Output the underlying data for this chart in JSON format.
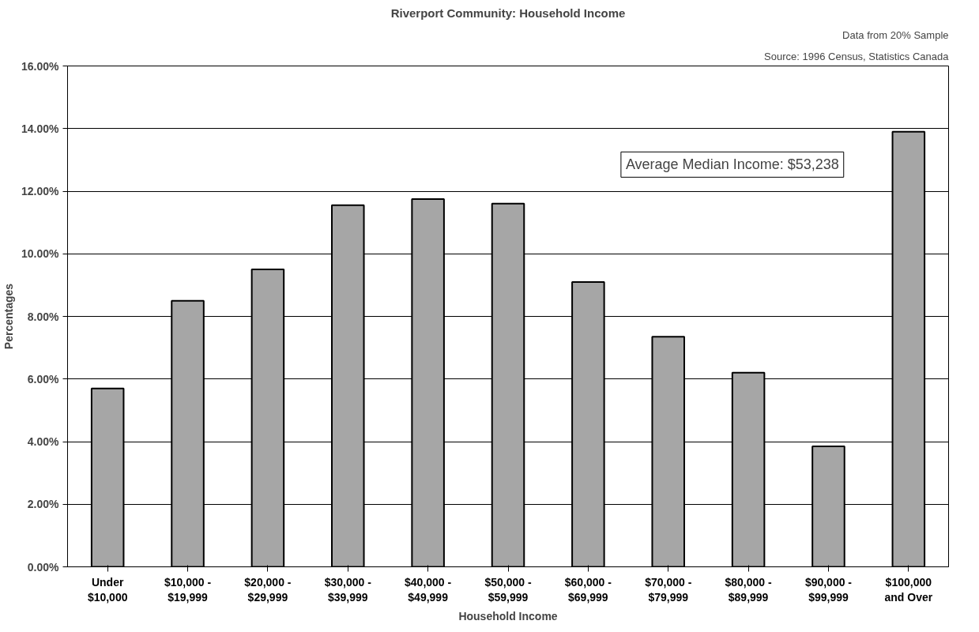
{
  "chart_data": {
    "type": "bar",
    "title": "Riverport Community: Household Income",
    "xlabel": "Household Income",
    "ylabel": "Percentages",
    "categories": [
      "Under\n$10,000",
      "$10,000 -\n$19,999",
      "$20,000 -\n$29,999",
      "$30,000 -\n$39,999",
      "$40,000 -\n$49,999",
      "$50,000 -\n$59,999",
      "$60,000 -\n$69,999",
      "$70,000 -\n$79,999",
      "$80,000 -\n$89,999",
      "$90,000 -\n$99,999",
      "$100,000\nand Over"
    ],
    "values": [
      5.7,
      8.5,
      9.5,
      11.55,
      11.75,
      11.6,
      9.1,
      7.35,
      6.2,
      3.85,
      13.9
    ],
    "color": "#a6a6a6",
    "ylim": [
      0,
      16
    ],
    "yticks": [
      {
        "value": 0,
        "label": "0.00%"
      },
      {
        "value": 2,
        "label": "2.00%"
      },
      {
        "value": 4,
        "label": "4.00%"
      },
      {
        "value": 6,
        "label": "6.00%"
      },
      {
        "value": 8,
        "label": "8.00%"
      },
      {
        "value": 10,
        "label": "10.00%"
      },
      {
        "value": 12,
        "label": "12.00%"
      },
      {
        "value": 14,
        "label": "14.00%"
      },
      {
        "value": 16,
        "label": "16.00%"
      }
    ],
    "grid": "y",
    "annotations": [
      "Data from 20% Sample",
      "Source: 1996 Census, Statistics Canada",
      "Average Median Income: $53,238"
    ]
  }
}
